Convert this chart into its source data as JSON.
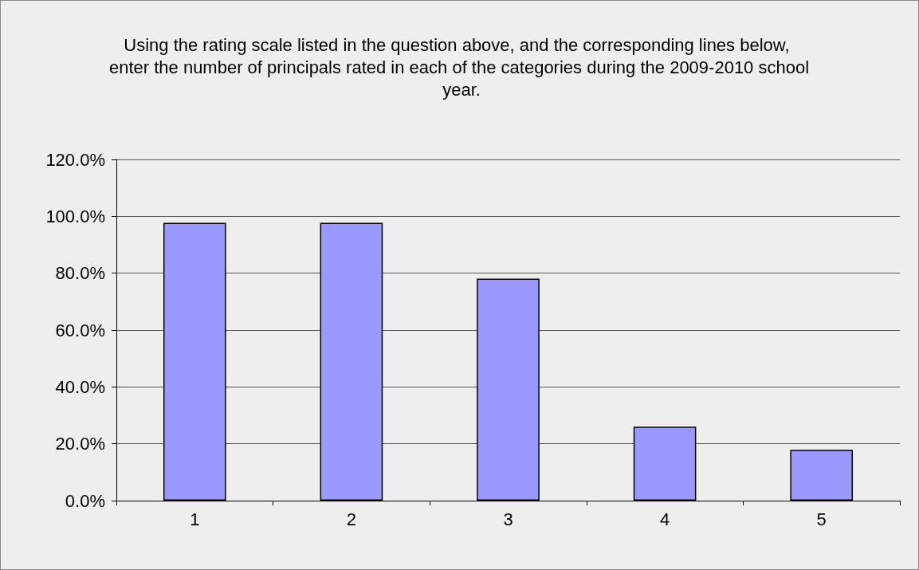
{
  "chart_data": {
    "type": "bar",
    "title": "Using the rating scale listed in the question above, and the corresponding lines below, enter the number of principals rated in each of the categories during the 2009-2010 school year.",
    "categories": [
      "1",
      "2",
      "3",
      "4",
      "5"
    ],
    "values": [
      97.7,
      97.7,
      78.1,
      26.0,
      17.9
    ],
    "color": "#9999ff",
    "ylim": [
      0,
      120
    ],
    "yticks": [
      {
        "value": 0,
        "label": "0.0%"
      },
      {
        "value": 20,
        "label": "20.0%"
      },
      {
        "value": 40,
        "label": "40.0%"
      },
      {
        "value": 60,
        "label": "60.0%"
      },
      {
        "value": 80,
        "label": "80.0%"
      },
      {
        "value": 100,
        "label": "100.0%"
      },
      {
        "value": 120,
        "label": "120.0%"
      }
    ],
    "grid": "y"
  }
}
